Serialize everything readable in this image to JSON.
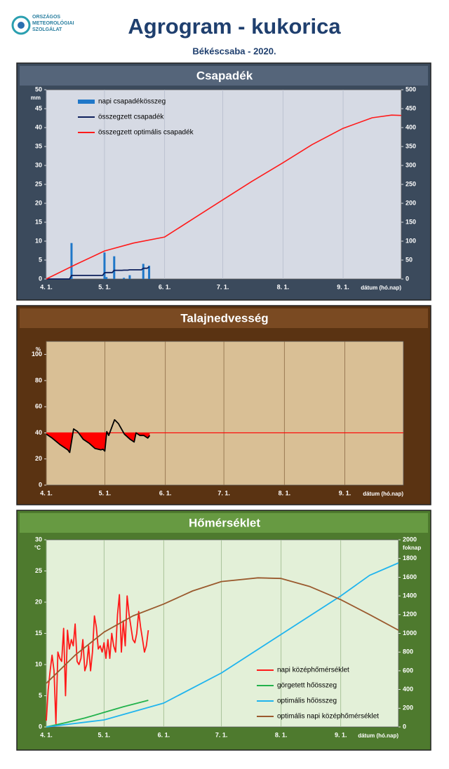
{
  "header": {
    "logo": [
      "ORSZÁGOS",
      "METEOROLÓGIAI",
      "SZOLGÁLAT"
    ],
    "title": "Agrogram - kukorica",
    "subtitle": "Békéscsaba - 2020."
  },
  "chart_data": [
    {
      "type": "combo",
      "title": "Csapadék",
      "ylabel": "mm",
      "xlabel": "dátum (hó.nap)",
      "xlim": [
        0,
        183
      ],
      "xticks": [
        {
          "value": 0,
          "label": "4. 1."
        },
        {
          "value": 30,
          "label": "5. 1."
        },
        {
          "value": 61,
          "label": "6. 1."
        },
        {
          "value": 91,
          "label": "7. 1."
        },
        {
          "value": 122,
          "label": "8. 1."
        },
        {
          "value": 153,
          "label": "9. 1."
        }
      ],
      "ylim": [
        0,
        50
      ],
      "yticks": [
        0,
        5,
        10,
        15,
        20,
        25,
        30,
        35,
        40,
        45,
        50
      ],
      "y2lim": [
        0,
        500
      ],
      "y2ticks": [
        0,
        50,
        100,
        150,
        200,
        250,
        300,
        350,
        400,
        450,
        500
      ],
      "grid": "x",
      "legend": "upper left",
      "series": [
        {
          "name": "napi csapadékösszeg",
          "kind": "bar",
          "color": "#1f77c8",
          "x": [
            13,
            30,
            31,
            35,
            40,
            43,
            50,
            53
          ],
          "values": [
            9.5,
            7,
            0.5,
            6,
            0.3,
            1,
            4,
            3.5
          ]
        },
        {
          "name": "összegzett csapadék",
          "kind": "line",
          "color": "#0d1f5c",
          "axis": "y2",
          "x": [
            0,
            12,
            13,
            29,
            30,
            31,
            34,
            35,
            39,
            40,
            42,
            43,
            49,
            50,
            52,
            53
          ],
          "values": [
            0,
            0,
            9.5,
            9.5,
            16.5,
            17,
            17,
            23,
            23,
            23.3,
            23.3,
            24.3,
            24.3,
            28.3,
            28.3,
            31.8
          ]
        },
        {
          "name": "összegzett optimális  csapadék",
          "kind": "line",
          "color": "#ff1a1a",
          "axis": "y2",
          "x": [
            0,
            15,
            30,
            45,
            61,
            76,
            91,
            106,
            122,
            137,
            153,
            168,
            178,
            183
          ],
          "values": [
            0,
            38,
            74,
            95,
            111,
            160,
            209,
            258,
            307,
            355,
            398,
            426,
            433,
            432
          ]
        }
      ]
    },
    {
      "type": "area",
      "title": "Talajnedvesség",
      "ylabel": "%",
      "xlabel": "dátum (hó.nap)",
      "xlim": [
        0,
        183
      ],
      "xticks": [
        {
          "value": 0,
          "label": "4. 1."
        },
        {
          "value": 30,
          "label": "5. 1."
        },
        {
          "value": 61,
          "label": "6. 1."
        },
        {
          "value": 91,
          "label": "7. 1."
        },
        {
          "value": 122,
          "label": "8. 1."
        },
        {
          "value": 153,
          "label": "9. 1."
        }
      ],
      "ylim": [
        0,
        110
      ],
      "yticks": [
        0,
        20,
        40,
        60,
        80,
        100
      ],
      "grid": "x",
      "threshold": 40,
      "threshold_color": "#ff0000",
      "fill_color": "#ff0000",
      "series": [
        {
          "color": "#000000",
          "x": [
            0,
            3,
            7,
            11,
            12,
            14,
            16,
            19,
            22,
            25,
            28,
            29,
            30,
            31,
            32,
            35,
            37,
            40,
            43,
            45,
            46,
            48,
            50,
            52,
            53
          ],
          "values": [
            39,
            36,
            31,
            27,
            25,
            43,
            41,
            35,
            32,
            28,
            27,
            27.5,
            26,
            41,
            38,
            50,
            47,
            39,
            35,
            33,
            40,
            38,
            38,
            36,
            38
          ]
        }
      ]
    },
    {
      "type": "line",
      "title": "Hőmérséklet",
      "ylabel": "°C",
      "y2label": "foknap",
      "xlabel": "dátum (hó.nap)",
      "xlim": [
        0,
        183
      ],
      "xticks": [
        {
          "value": 0,
          "label": "4. 1."
        },
        {
          "value": 30,
          "label": "5. 1."
        },
        {
          "value": 61,
          "label": "6. 1."
        },
        {
          "value": 91,
          "label": "7. 1."
        },
        {
          "value": 122,
          "label": "8. 1."
        },
        {
          "value": 153,
          "label": "9. 1."
        }
      ],
      "ylim": [
        0,
        30
      ],
      "yticks": [
        0,
        5,
        10,
        15,
        20,
        25,
        30
      ],
      "y2lim": [
        0,
        2000
      ],
      "y2ticks": [
        0,
        200,
        400,
        600,
        800,
        1000,
        1200,
        1400,
        1600,
        1800,
        2000
      ],
      "grid": "x",
      "legend": "lower right",
      "series": [
        {
          "name": "napi középhőmérséklet",
          "color": "#ff1a1a",
          "x": [
            0,
            1,
            2,
            3,
            4,
            5,
            6,
            7,
            8,
            9,
            10,
            11,
            12,
            13,
            14,
            15,
            16,
            17,
            18,
            19,
            20,
            21,
            22,
            23,
            24,
            25,
            26,
            27,
            28,
            29,
            30,
            31,
            32,
            33,
            34,
            35,
            36,
            37,
            38,
            39,
            40,
            41,
            42,
            43,
            44,
            45,
            46,
            47,
            48,
            49,
            50,
            51,
            52,
            53
          ],
          "values": [
            1,
            6,
            9,
            11.5,
            9,
            0.5,
            12,
            11,
            10.5,
            15.8,
            5,
            15.5,
            12.5,
            14,
            13,
            16.5,
            10.5,
            10,
            11,
            14,
            9,
            10,
            13,
            9,
            12,
            17.8,
            16,
            12.5,
            13,
            12,
            13.5,
            11,
            14,
            11,
            15,
            13,
            12,
            18,
            21.2,
            12,
            17,
            13,
            21,
            18,
            16,
            14,
            13.5,
            15,
            18.5,
            16,
            14,
            12,
            13,
            15.5
          ]
        },
        {
          "name": "görgetett hőösszeg",
          "color": "#22b24c",
          "axis": "y2",
          "x": [
            0,
            10,
            20,
            30,
            40,
            53
          ],
          "values": [
            0,
            45,
            95,
            155,
            215,
            285
          ]
        },
        {
          "name": "optimális hőösszeg",
          "color": "#1fb4ee",
          "axis": "y2",
          "x": [
            0,
            30,
            61,
            91,
            122,
            153,
            168,
            183
          ],
          "values": [
            0,
            75,
            255,
            577,
            989,
            1400,
            1620,
            1753
          ]
        },
        {
          "name": "optimális napi középhőmérséklet",
          "color": "#9a5a2e",
          "x": [
            0,
            15,
            30,
            45,
            61,
            76,
            91,
            110,
            122,
            137,
            153,
            168,
            183
          ],
          "values": [
            7,
            11.5,
            15.2,
            17.8,
            19.7,
            21.8,
            23.3,
            23.9,
            23.8,
            22.5,
            20.4,
            18,
            15.5
          ]
        }
      ]
    }
  ]
}
